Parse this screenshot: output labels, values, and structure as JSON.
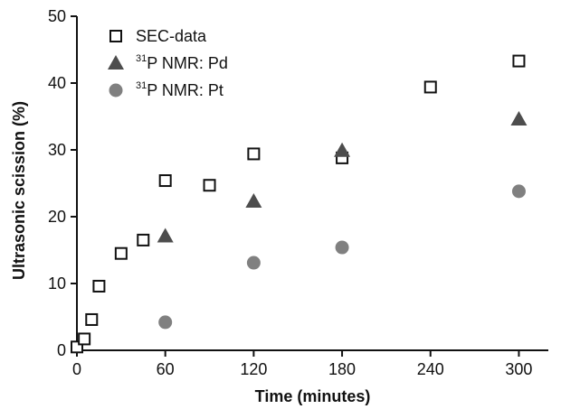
{
  "chart_data": {
    "type": "scatter",
    "title": "",
    "xlabel": "Time (minutes)",
    "ylabel": "Ultrasonic scission (%)",
    "xlim": [
      0,
      320
    ],
    "ylim": [
      0,
      50
    ],
    "xticks": [
      0,
      60,
      120,
      180,
      240,
      300
    ],
    "yticks": [
      0,
      10,
      20,
      30,
      40,
      50
    ],
    "grid": false,
    "legend_position": "top-left",
    "series": [
      {
        "name": "SEC-data",
        "name_sup": "",
        "name_main": "SEC-data",
        "marker": "open-square",
        "color": "#111111",
        "points": [
          [
            0,
            0.5
          ],
          [
            5,
            1.7
          ],
          [
            10,
            4.6
          ],
          [
            15,
            9.6
          ],
          [
            30,
            14.5
          ],
          [
            45,
            16.5
          ],
          [
            60,
            25.4
          ],
          [
            90,
            24.7
          ],
          [
            120,
            29.4
          ],
          [
            180,
            28.8
          ],
          [
            240,
            39.4
          ],
          [
            300,
            43.3
          ]
        ]
      },
      {
        "name": "31P NMR: Pd",
        "name_sup": "31",
        "name_main": "P NMR: Pd",
        "marker": "filled-triangle",
        "color": "#4d4d4d",
        "points": [
          [
            60,
            17.1
          ],
          [
            120,
            22.3
          ],
          [
            180,
            29.9
          ],
          [
            300,
            34.6
          ]
        ]
      },
      {
        "name": "31P NMR: Pt",
        "name_sup": "31",
        "name_main": "P NMR: Pt",
        "marker": "filled-circle",
        "color": "#808080",
        "points": [
          [
            60,
            4.2
          ],
          [
            120,
            13.1
          ],
          [
            180,
            15.4
          ],
          [
            300,
            23.8
          ]
        ]
      }
    ]
  }
}
